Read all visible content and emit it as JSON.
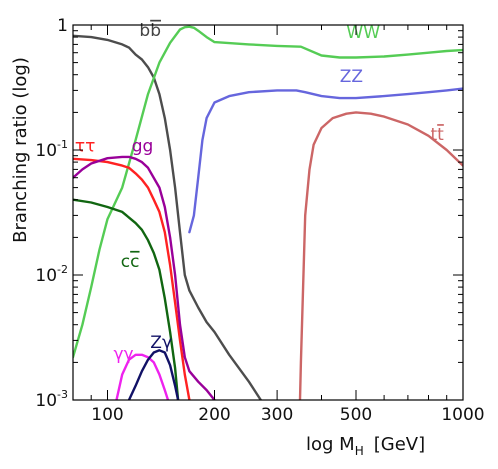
{
  "chart_data": {
    "type": "line",
    "title": "",
    "xlabel": "log M_H [GeV]",
    "xlabel_parts": {
      "text": "log M",
      "sub": "H",
      "unit": "[GeV]"
    },
    "ylabel": "Branching ratio (log)",
    "xscale": "log",
    "yscale": "log",
    "xlim": [
      80,
      1000
    ],
    "ylim": [
      0.001,
      1
    ],
    "grid": false,
    "legend": "none",
    "x_ticks": [
      {
        "value": 100,
        "label": "100"
      },
      {
        "value": 200,
        "label": "200"
      },
      {
        "value": 300,
        "label": "300"
      },
      {
        "value": 500,
        "label": "500"
      },
      {
        "value": 1000,
        "label": "1000"
      }
    ],
    "y_ticks": [
      {
        "value": 1,
        "base": "1",
        "exp": ""
      },
      {
        "value": 0.1,
        "base": "10",
        "exp": "-1"
      },
      {
        "value": 0.01,
        "base": "10",
        "exp": "-2"
      },
      {
        "value": 0.001,
        "base": "10",
        "exp": "-3"
      }
    ],
    "series": [
      {
        "name": "bb̄",
        "color": "#4d4d4d",
        "label": {
          "at": [
            123,
            0.82
          ],
          "base": "b",
          "bar": "b",
          "color": "#444444"
        },
        "points": [
          [
            80,
            0.82
          ],
          [
            90,
            0.8
          ],
          [
            100,
            0.76
          ],
          [
            110,
            0.7
          ],
          [
            115,
            0.66
          ],
          [
            120,
            0.58
          ],
          [
            125,
            0.53
          ],
          [
            130,
            0.46
          ],
          [
            135,
            0.38
          ],
          [
            140,
            0.28
          ],
          [
            145,
            0.18
          ],
          [
            150,
            0.1
          ],
          [
            155,
            0.05
          ],
          [
            160,
            0.022
          ],
          [
            165,
            0.01
          ],
          [
            170,
            0.0075
          ],
          [
            180,
            0.0055
          ],
          [
            190,
            0.0042
          ],
          [
            200,
            0.0035
          ],
          [
            220,
            0.0023
          ],
          [
            250,
            0.0014
          ],
          [
            270,
            0.001
          ]
        ]
      },
      {
        "name": "WW",
        "color": "#55cc55",
        "label": {
          "at": [
            470,
            0.79
          ],
          "base": "WW",
          "color": "#55cc55"
        },
        "points": [
          [
            80,
            0.0022
          ],
          [
            85,
            0.004
          ],
          [
            90,
            0.008
          ],
          [
            95,
            0.016
          ],
          [
            100,
            0.028
          ],
          [
            110,
            0.05
          ],
          [
            120,
            0.12
          ],
          [
            130,
            0.28
          ],
          [
            140,
            0.5
          ],
          [
            150,
            0.72
          ],
          [
            160,
            0.92
          ],
          [
            165,
            0.96
          ],
          [
            170,
            0.97
          ],
          [
            175,
            0.95
          ],
          [
            180,
            0.9
          ],
          [
            190,
            0.8
          ],
          [
            200,
            0.73
          ],
          [
            250,
            0.7
          ],
          [
            300,
            0.68
          ],
          [
            350,
            0.67
          ],
          [
            400,
            0.57
          ],
          [
            450,
            0.55
          ],
          [
            500,
            0.55
          ],
          [
            600,
            0.56
          ],
          [
            700,
            0.58
          ],
          [
            800,
            0.6
          ],
          [
            900,
            0.62
          ],
          [
            1000,
            0.63
          ]
        ]
      },
      {
        "name": "ZZ",
        "color": "#6666dd",
        "label": {
          "at": [
            450,
            0.35
          ],
          "base": "ZZ",
          "color": "#6666dd"
        },
        "points": [
          [
            170,
            0.022
          ],
          [
            175,
            0.03
          ],
          [
            180,
            0.06
          ],
          [
            185,
            0.12
          ],
          [
            190,
            0.18
          ],
          [
            200,
            0.24
          ],
          [
            220,
            0.27
          ],
          [
            250,
            0.29
          ],
          [
            300,
            0.3
          ],
          [
            340,
            0.3
          ],
          [
            360,
            0.29
          ],
          [
            400,
            0.27
          ],
          [
            450,
            0.26
          ],
          [
            500,
            0.26
          ],
          [
            600,
            0.27
          ],
          [
            700,
            0.28
          ],
          [
            800,
            0.29
          ],
          [
            900,
            0.3
          ],
          [
            1000,
            0.31
          ]
        ]
      },
      {
        "name": "tt̄",
        "color": "#cc6666",
        "label": {
          "at": [
            810,
            0.12
          ],
          "base": "t",
          "bar": "t",
          "color": "#cc6666"
        },
        "points": [
          [
            348,
            0.001
          ],
          [
            350,
            0.002
          ],
          [
            355,
            0.008
          ],
          [
            360,
            0.03
          ],
          [
            370,
            0.07
          ],
          [
            380,
            0.11
          ],
          [
            400,
            0.15
          ],
          [
            430,
            0.18
          ],
          [
            470,
            0.195
          ],
          [
            500,
            0.2
          ],
          [
            550,
            0.195
          ],
          [
            600,
            0.185
          ],
          [
            700,
            0.16
          ],
          [
            800,
            0.13
          ],
          [
            900,
            0.1
          ],
          [
            1000,
            0.075
          ]
        ]
      },
      {
        "name": "ττ",
        "color": "#ff2222",
        "label": {
          "at": [
            81,
            0.097
          ],
          "base": "ττ",
          "color": "#ff2222"
        },
        "points": [
          [
            80,
            0.085
          ],
          [
            90,
            0.083
          ],
          [
            100,
            0.08
          ],
          [
            110,
            0.075
          ],
          [
            115,
            0.072
          ],
          [
            120,
            0.065
          ],
          [
            125,
            0.058
          ],
          [
            130,
            0.05
          ],
          [
            135,
            0.04
          ],
          [
            140,
            0.032
          ],
          [
            145,
            0.022
          ],
          [
            150,
            0.012
          ],
          [
            155,
            0.006
          ],
          [
            160,
            0.003
          ],
          [
            165,
            0.0016
          ],
          [
            170,
            0.001
          ]
        ]
      },
      {
        "name": "gg",
        "color": "#990099",
        "label": {
          "at": [
            117,
            0.097
          ],
          "base": "gg",
          "color": "#990099"
        },
        "points": [
          [
            80,
            0.06
          ],
          [
            85,
            0.07
          ],
          [
            90,
            0.078
          ],
          [
            100,
            0.086
          ],
          [
            110,
            0.088
          ],
          [
            115,
            0.088
          ],
          [
            120,
            0.085
          ],
          [
            125,
            0.08
          ],
          [
            130,
            0.072
          ],
          [
            140,
            0.05
          ],
          [
            145,
            0.035
          ],
          [
            150,
            0.02
          ],
          [
            155,
            0.01
          ],
          [
            160,
            0.004
          ],
          [
            165,
            0.0022
          ],
          [
            170,
            0.0017
          ],
          [
            180,
            0.0014
          ],
          [
            190,
            0.0012
          ],
          [
            200,
            0.001
          ]
        ]
      },
      {
        "name": "cc̄",
        "color": "#116611",
        "label": {
          "at": [
            109,
            0.0116
          ],
          "base": "c",
          "bar": "c",
          "color": "#116611"
        },
        "points": [
          [
            80,
            0.04
          ],
          [
            90,
            0.038
          ],
          [
            100,
            0.035
          ],
          [
            110,
            0.032
          ],
          [
            120,
            0.026
          ],
          [
            125,
            0.023
          ],
          [
            130,
            0.019
          ],
          [
            135,
            0.015
          ],
          [
            140,
            0.011
          ],
          [
            145,
            0.0065
          ],
          [
            150,
            0.0035
          ],
          [
            155,
            0.0018
          ],
          [
            158,
            0.001
          ]
        ]
      },
      {
        "name": "γγ",
        "color": "#ee22ee",
        "label": {
          "at": [
            104,
            0.0021
          ],
          "base": "γγ",
          "color": "#ee22ee"
        },
        "points": [
          [
            106,
            0.001
          ],
          [
            110,
            0.0016
          ],
          [
            115,
            0.0021
          ],
          [
            120,
            0.0023
          ],
          [
            125,
            0.0023
          ],
          [
            130,
            0.0022
          ],
          [
            135,
            0.002
          ],
          [
            140,
            0.0016
          ],
          [
            145,
            0.0012
          ],
          [
            148,
            0.001
          ]
        ]
      },
      {
        "name": "Zγ",
        "color": "#111166",
        "label": {
          "at": [
            132,
            0.0026
          ],
          "base": "Zγ",
          "color": "#111166"
        },
        "points": [
          [
            115,
            0.001
          ],
          [
            120,
            0.0013
          ],
          [
            125,
            0.0017
          ],
          [
            130,
            0.0021
          ],
          [
            135,
            0.0024
          ],
          [
            140,
            0.0025
          ],
          [
            145,
            0.0024
          ],
          [
            150,
            0.0019
          ],
          [
            155,
            0.0013
          ],
          [
            158,
            0.001
          ]
        ]
      }
    ]
  }
}
